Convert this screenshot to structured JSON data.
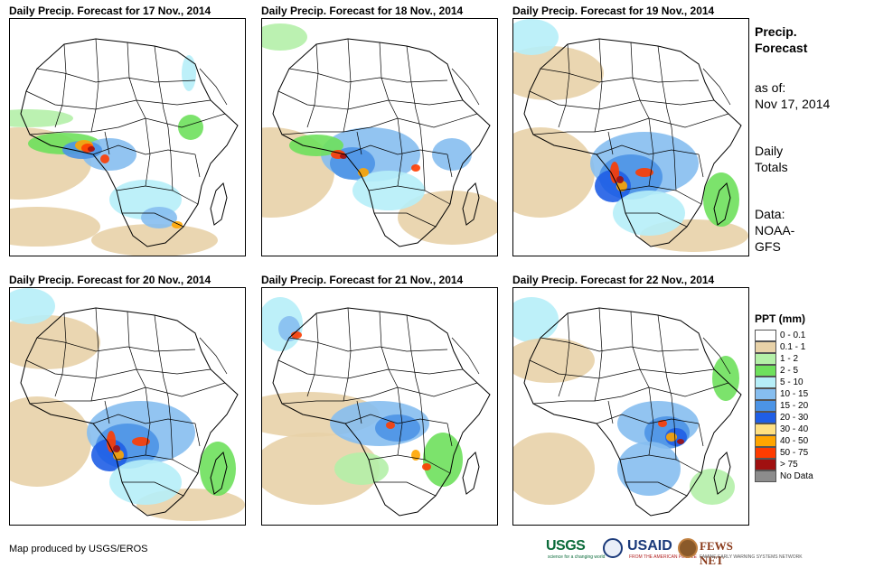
{
  "panels": [
    {
      "title": "Daily Precip. Forecast for 17 Nov., 2014",
      "heavy": "west"
    },
    {
      "title": "Daily Precip. Forecast for 18 Nov., 2014",
      "heavy": "central"
    },
    {
      "title": "Daily Precip. Forecast for 19 Nov., 2014",
      "heavy": "congo"
    },
    {
      "title": "Daily Precip. Forecast for 20 Nov., 2014",
      "heavy": "congo"
    },
    {
      "title": "Daily Precip. Forecast for 21 Nov., 2014",
      "heavy": "north"
    },
    {
      "title": "Daily Precip. Forecast for 22 Nov., 2014",
      "heavy": "east"
    }
  ],
  "side": {
    "title_line1": "Precip.",
    "title_line2": "Forecast",
    "asof_label": "as of:",
    "asof_date": "Nov 17, 2014",
    "totals_line1": "Daily",
    "totals_line2": "Totals",
    "data_line1": "Data:",
    "data_line2": "NOAA-",
    "data_line3": "GFS"
  },
  "legend": {
    "title": "PPT (mm)",
    "items": [
      {
        "label": "0 - 0.1",
        "color": "#ffffff"
      },
      {
        "label": "0.1 - 1",
        "color": "#e8d2a8"
      },
      {
        "label": "1 - 2",
        "color": "#b4f0a8"
      },
      {
        "label": "2 - 5",
        "color": "#6ee05c"
      },
      {
        "label": "5 - 10",
        "color": "#b6eef8"
      },
      {
        "label": "10 - 15",
        "color": "#86bef0"
      },
      {
        "label": "15 - 20",
        "color": "#4c94e6"
      },
      {
        "label": "20 - 30",
        "color": "#1f5ee6"
      },
      {
        "label": "30 - 40",
        "color": "#ffe082"
      },
      {
        "label": "40 - 50",
        "color": "#ffa500"
      },
      {
        "label": "50 - 75",
        "color": "#ff3c00"
      },
      {
        "label": "> 75",
        "color": "#a01010"
      },
      {
        "label": "No Data",
        "color": "#8c8c8c"
      }
    ]
  },
  "credit": "Map produced by USGS/EROS",
  "logos": {
    "usgs": "USGS",
    "usgs_tagline": "science for a changing world",
    "usaid": "USAID",
    "usaid_tagline": "FROM THE AMERICAN PEOPLE",
    "fews": "FEWS NET",
    "fews_tagline": "FAMINE EARLY WARNING SYSTEMS NETWORK"
  }
}
